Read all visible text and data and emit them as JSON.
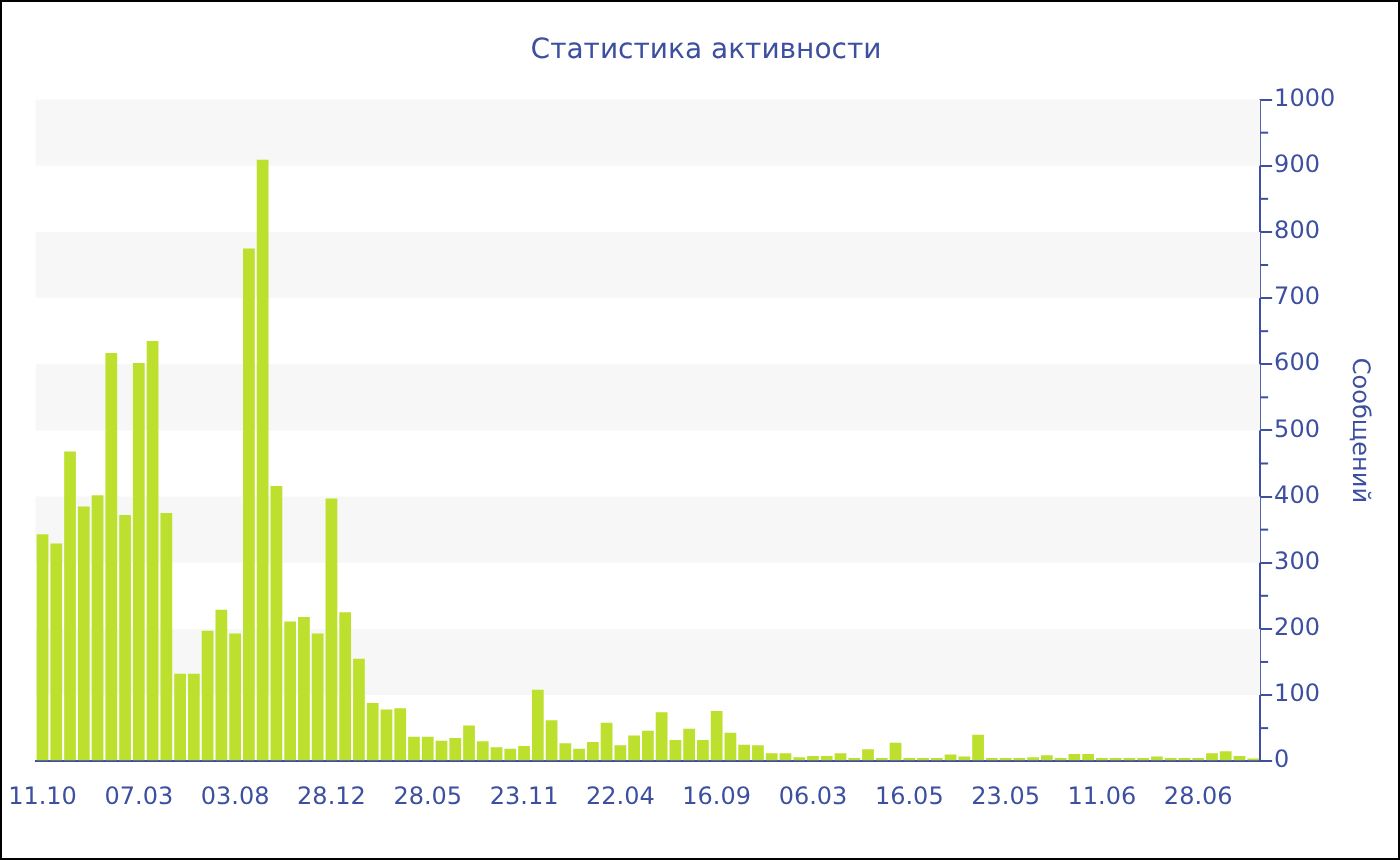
{
  "chart_data": {
    "type": "bar",
    "title": "Статистика активности",
    "ylabel": "Сообщений",
    "categories": [
      "11.10",
      null,
      null,
      null,
      null,
      null,
      null,
      "07.03",
      null,
      null,
      null,
      null,
      null,
      null,
      "03.08",
      null,
      null,
      null,
      null,
      null,
      null,
      "28.12",
      null,
      null,
      null,
      null,
      null,
      null,
      "28.05",
      null,
      null,
      null,
      null,
      null,
      null,
      "23.11",
      null,
      null,
      null,
      null,
      null,
      null,
      "22.04",
      null,
      null,
      null,
      null,
      null,
      null,
      "16.09",
      null,
      null,
      null,
      null,
      null,
      null,
      "06.03",
      null,
      null,
      null,
      null,
      null,
      null,
      "16.05",
      null,
      null,
      null,
      null,
      null,
      null,
      "23.05",
      null,
      null,
      null,
      null,
      null,
      null,
      "11.06",
      null,
      null,
      null,
      null,
      null,
      null,
      "28.06",
      null,
      null,
      null,
      null
    ],
    "values": [
      343,
      329,
      468,
      385,
      402,
      617,
      372,
      602,
      635,
      375,
      132,
      132,
      197,
      229,
      193,
      775,
      909,
      416,
      211,
      218,
      193,
      397,
      225,
      155,
      88,
      78,
      80,
      37,
      37,
      31,
      35,
      54,
      30,
      21,
      19,
      23,
      108,
      62,
      27,
      19,
      29,
      58,
      24,
      39,
      46,
      74,
      32,
      49,
      32,
      76,
      43,
      25,
      24,
      12,
      12,
      6,
      8,
      8,
      12,
      5,
      18,
      5,
      28,
      5,
      5,
      5,
      10,
      7,
      40,
      5,
      5,
      5,
      6,
      9,
      5,
      11,
      11,
      5,
      5,
      5,
      5,
      7,
      5,
      5,
      5,
      12,
      15,
      8,
      4
    ],
    "color": "#bde02f",
    "ylim": [
      0,
      1000
    ],
    "yticks": [
      0,
      100,
      200,
      300,
      400,
      500,
      600,
      700,
      800,
      900,
      1000
    ]
  }
}
